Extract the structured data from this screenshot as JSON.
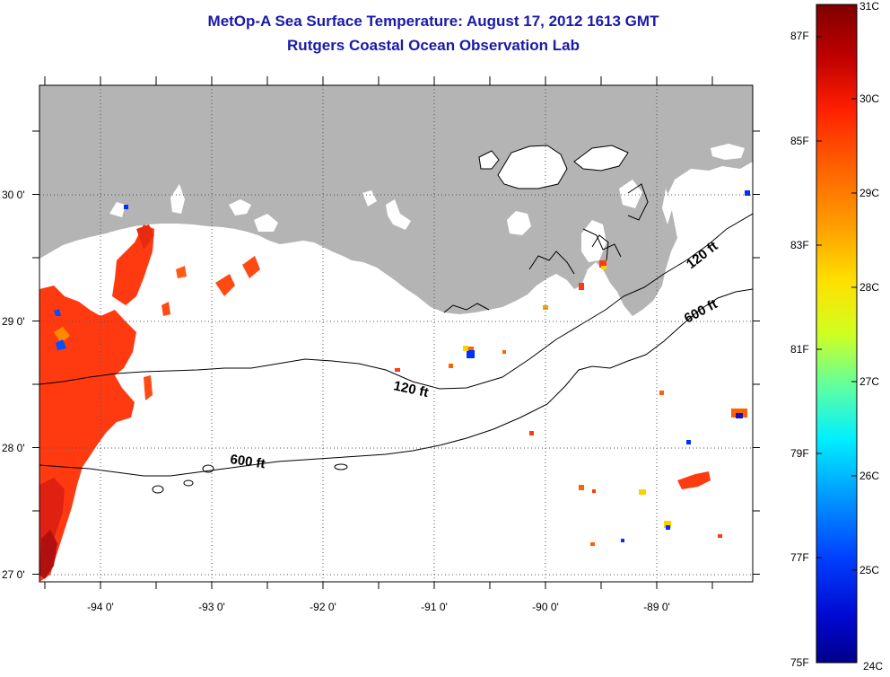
{
  "title": "MetOp-A Sea Surface Temperature:  August 17, 2012 1613 GMT",
  "subtitle": "Rutgers Coastal Ocean Observation Lab",
  "lon_labels": [
    "-94 0'",
    "-93 0'",
    "-92 0'",
    "-91 0'",
    "-90 0'",
    "-89 0'"
  ],
  "lat_labels": [
    "30 0'",
    "29 0'",
    "28 0'",
    "27 0'"
  ],
  "contour_labels": [
    "120 ft",
    "600 ft",
    "120 ft",
    "600 ft"
  ],
  "colorbar": {
    "fahrenheit": [
      "87F",
      "85F",
      "83F",
      "81F",
      "79F",
      "77F",
      "75F"
    ],
    "celsius": [
      "31C",
      "30C",
      "29C",
      "28C",
      "27C",
      "26C",
      "25C",
      "24C"
    ],
    "colors": [
      "#7f0000",
      "#c00000",
      "#ff2000",
      "#ff6000",
      "#ff9a00",
      "#ffd000",
      "#f0ff00",
      "#a0ff50",
      "#40ffb0",
      "#00e0ff",
      "#00a0ff",
      "#0050ff",
      "#0010e0",
      "#00008a"
    ]
  },
  "colors": {
    "land": "#b4b4b4",
    "title": "#1a1aa8",
    "warm_sst": "#ff3a10",
    "hot_sst": "#b01010"
  }
}
